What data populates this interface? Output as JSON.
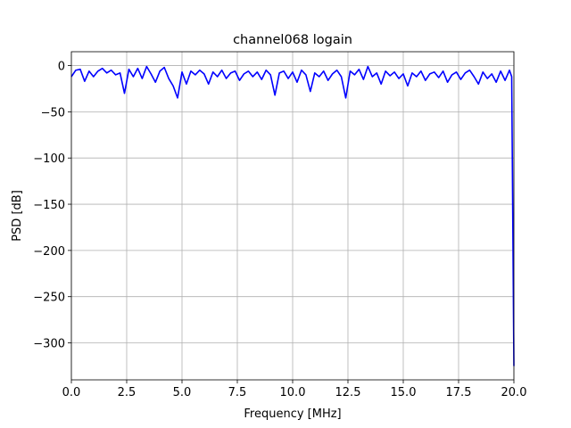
{
  "chart_data": {
    "type": "line",
    "title": "channel068 logain",
    "xlabel": "Frequency [MHz]",
    "ylabel": "PSD [dB]",
    "x": [
      0,
      0.2,
      0.4,
      0.6,
      0.8,
      1.0,
      1.2,
      1.4,
      1.6,
      1.8,
      2.0,
      2.2,
      2.4,
      2.6,
      2.8,
      3.0,
      3.2,
      3.4,
      3.6,
      3.8,
      4.0,
      4.2,
      4.4,
      4.6,
      4.8,
      5.0,
      5.2,
      5.4,
      5.6,
      5.8,
      6.0,
      6.2,
      6.4,
      6.6,
      6.8,
      7.0,
      7.2,
      7.4,
      7.6,
      7.8,
      8.0,
      8.2,
      8.4,
      8.6,
      8.8,
      9.0,
      9.2,
      9.4,
      9.6,
      9.8,
      10.0,
      10.2,
      10.4,
      10.6,
      10.8,
      11.0,
      11.2,
      11.4,
      11.6,
      11.8,
      12.0,
      12.2,
      12.4,
      12.6,
      12.8,
      13.0,
      13.2,
      13.4,
      13.6,
      13.8,
      14.0,
      14.2,
      14.4,
      14.6,
      14.8,
      15.0,
      15.2,
      15.4,
      15.6,
      15.8,
      16.0,
      16.2,
      16.4,
      16.6,
      16.8,
      17.0,
      17.2,
      17.4,
      17.6,
      17.8,
      18.0,
      18.2,
      18.4,
      18.6,
      18.8,
      19.0,
      19.2,
      19.4,
      19.6,
      19.8,
      19.9,
      20.0
    ],
    "series": [
      {
        "name": "PSD",
        "color": "#0000ff",
        "values": [
          -12,
          -5,
          -4,
          -17,
          -6,
          -12,
          -6,
          -3,
          -8,
          -5,
          -10,
          -8,
          -30,
          -4,
          -12,
          -3,
          -14,
          -1,
          -9,
          -18,
          -6,
          -2,
          -14,
          -22,
          -35,
          -7,
          -20,
          -6,
          -10,
          -5,
          -9,
          -20,
          -7,
          -12,
          -5,
          -14,
          -8,
          -6,
          -16,
          -9,
          -6,
          -12,
          -7,
          -15,
          -5,
          -10,
          -32,
          -8,
          -6,
          -14,
          -7,
          -18,
          -5,
          -10,
          -28,
          -8,
          -12,
          -6,
          -16,
          -9,
          -5,
          -12,
          -35,
          -6,
          -10,
          -4,
          -15,
          -1,
          -12,
          -8,
          -20,
          -6,
          -11,
          -7,
          -14,
          -9,
          -22,
          -8,
          -12,
          -6,
          -16,
          -9,
          -7,
          -13,
          -6,
          -18,
          -10,
          -7,
          -15,
          -8,
          -5,
          -12,
          -20,
          -7,
          -14,
          -9,
          -18,
          -6,
          -16,
          -5,
          -12,
          -325
        ]
      }
    ],
    "xlim": [
      0,
      20
    ],
    "ylim": [
      -340,
      15
    ],
    "xticks": [
      {
        "value": 0,
        "label": "0.0"
      },
      {
        "value": 2.5,
        "label": "2.5"
      },
      {
        "value": 5,
        "label": "5.0"
      },
      {
        "value": 7.5,
        "label": "7.5"
      },
      {
        "value": 10,
        "label": "10.0"
      },
      {
        "value": 12.5,
        "label": "12.5"
      },
      {
        "value": 15,
        "label": "15.0"
      },
      {
        "value": 17.5,
        "label": "17.5"
      },
      {
        "value": 20,
        "label": "20.0"
      }
    ],
    "yticks": [
      {
        "value": -300,
        "label": "−300"
      },
      {
        "value": -250,
        "label": "−250"
      },
      {
        "value": -200,
        "label": "−200"
      },
      {
        "value": -150,
        "label": "−150"
      },
      {
        "value": -100,
        "label": "−100"
      },
      {
        "value": -50,
        "label": "−50"
      },
      0
    ],
    "grid": true
  }
}
